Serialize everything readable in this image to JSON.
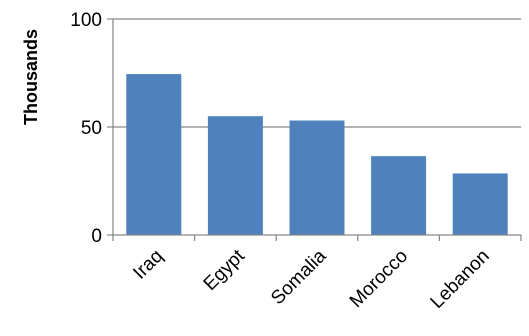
{
  "chart_data": {
    "type": "bar",
    "title": "",
    "xlabel": "",
    "ylabel": "Thousands",
    "categories": [
      "Iraq",
      "Egypt",
      "Somalia",
      "Morocco",
      "Lebanon"
    ],
    "values": [
      74.5,
      55,
      53,
      36.5,
      28.5
    ],
    "ylim": [
      0,
      100
    ],
    "yticks": [
      0,
      50,
      100
    ],
    "grid": true,
    "legend": "none",
    "bar_color": "#4F81BD",
    "grid_color": "#868686"
  }
}
